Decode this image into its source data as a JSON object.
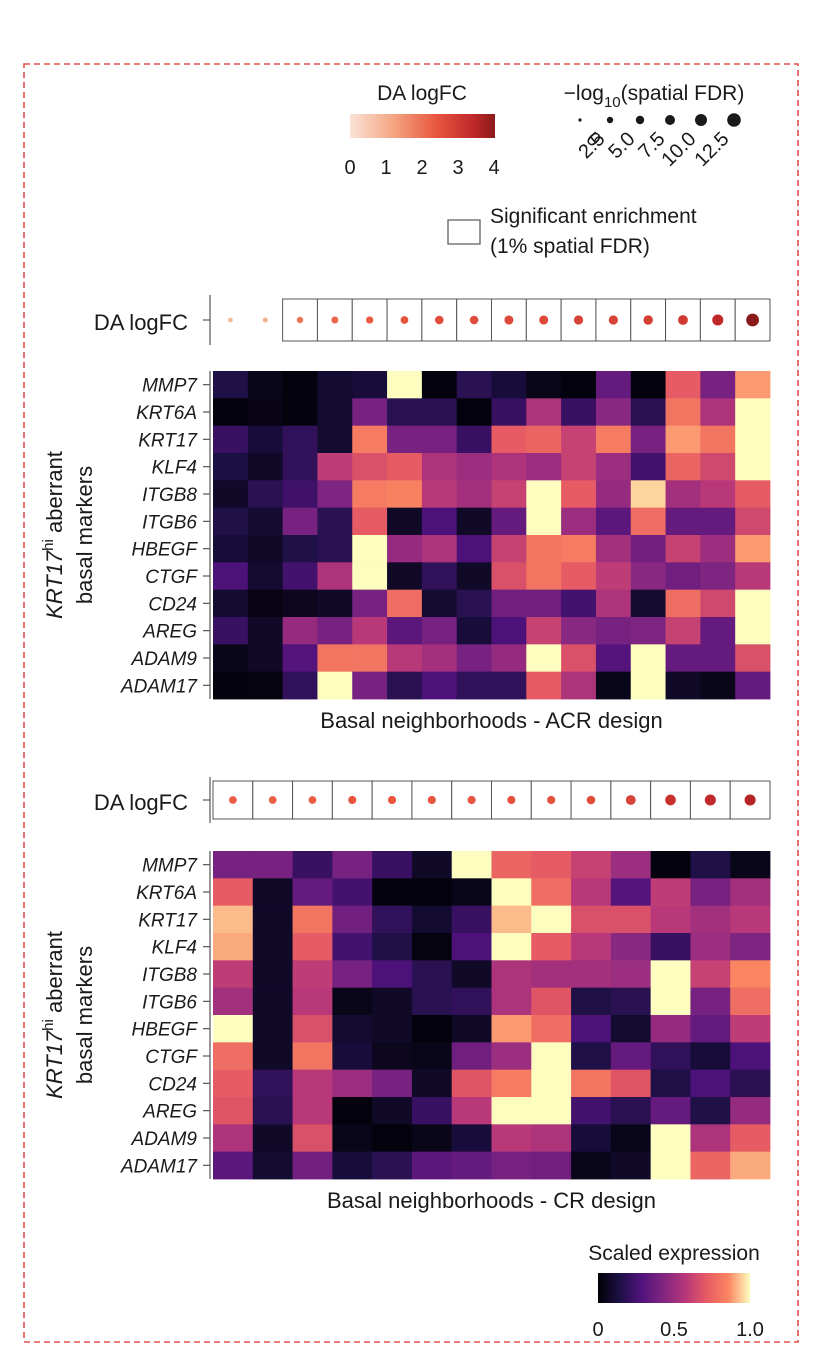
{
  "chart_data": [
    {
      "type": "heatmap",
      "name": "ACR design",
      "xlabel": "Basal neighborhoods - ACR design",
      "ylabel_main": "KRT17",
      "ylabel_sup": "hi",
      "ylabel_rest": " aberrant",
      "ylabel_line2": "basal markers",
      "da_row_label": "DA logFC",
      "genes": [
        "MMP7",
        "KRT6A",
        "KRT17",
        "KLF4",
        "ITGB8",
        "ITGB6",
        "HBEGF",
        "CTGF",
        "CD24",
        "AREG",
        "ADAM9",
        "ADAM17"
      ],
      "n_columns": 16,
      "da_logfc": [
        0.7,
        0.8,
        1.6,
        1.8,
        1.9,
        2.0,
        2.2,
        2.2,
        2.3,
        2.3,
        2.4,
        2.4,
        2.5,
        2.6,
        3.0,
        4.0
      ],
      "da_neg_log10_fdr": [
        0.5,
        0.8,
        2.5,
        3.0,
        3.5,
        4.0,
        5.0,
        5.0,
        5.5,
        5.5,
        5.8,
        5.8,
        6.0,
        6.5,
        8.0,
        10.0
      ],
      "da_significant": [
        false,
        false,
        true,
        true,
        true,
        true,
        true,
        true,
        true,
        true,
        true,
        true,
        true,
        true,
        true,
        true
      ],
      "values": [
        [
          0.15,
          0.05,
          0.02,
          0.1,
          0.12,
          1.0,
          0.02,
          0.18,
          0.12,
          0.05,
          0.02,
          0.35,
          0.02,
          0.72,
          0.4,
          0.88
        ],
        [
          0.02,
          0.04,
          0.02,
          0.1,
          0.4,
          0.18,
          0.18,
          0.02,
          0.22,
          0.55,
          0.22,
          0.45,
          0.18,
          0.8,
          0.55,
          1.0
        ],
        [
          0.22,
          0.12,
          0.2,
          0.1,
          0.82,
          0.4,
          0.4,
          0.22,
          0.72,
          0.75,
          0.62,
          0.82,
          0.4,
          0.88,
          0.8,
          1.0
        ],
        [
          0.14,
          0.08,
          0.2,
          0.6,
          0.68,
          0.72,
          0.55,
          0.5,
          0.55,
          0.5,
          0.62,
          0.5,
          0.25,
          0.75,
          0.65,
          1.0
        ],
        [
          0.08,
          0.18,
          0.24,
          0.42,
          0.82,
          0.84,
          0.58,
          0.52,
          0.62,
          1.0,
          0.72,
          0.48,
          0.95,
          0.52,
          0.58,
          0.72
        ],
        [
          0.15,
          0.1,
          0.4,
          0.18,
          0.72,
          0.08,
          0.28,
          0.08,
          0.35,
          1.0,
          0.5,
          0.32,
          0.78,
          0.35,
          0.35,
          0.65
        ],
        [
          0.12,
          0.08,
          0.15,
          0.18,
          1.0,
          0.48,
          0.55,
          0.28,
          0.62,
          0.8,
          0.82,
          0.52,
          0.38,
          0.62,
          0.5,
          0.88
        ],
        [
          0.28,
          0.1,
          0.25,
          0.55,
          1.0,
          0.08,
          0.2,
          0.08,
          0.68,
          0.8,
          0.72,
          0.6,
          0.45,
          0.38,
          0.42,
          0.58
        ],
        [
          0.1,
          0.04,
          0.06,
          0.08,
          0.4,
          0.78,
          0.1,
          0.18,
          0.38,
          0.38,
          0.25,
          0.55,
          0.1,
          0.78,
          0.65,
          1.0
        ],
        [
          0.22,
          0.08,
          0.48,
          0.4,
          0.58,
          0.32,
          0.4,
          0.12,
          0.28,
          0.62,
          0.45,
          0.4,
          0.42,
          0.62,
          0.35,
          1.0
        ],
        [
          0.05,
          0.08,
          0.3,
          0.8,
          0.8,
          0.58,
          0.52,
          0.4,
          0.48,
          1.0,
          0.68,
          0.3,
          1.0,
          0.35,
          0.35,
          0.68
        ],
        [
          0.02,
          0.03,
          0.2,
          1.0,
          0.4,
          0.18,
          0.28,
          0.2,
          0.2,
          0.72,
          0.55,
          0.05,
          1.0,
          0.08,
          0.05,
          0.35
        ]
      ]
    },
    {
      "type": "heatmap",
      "name": "CR design",
      "xlabel": "Basal neighborhoods - CR design",
      "ylabel_main": "KRT17",
      "ylabel_sup": "hi",
      "ylabel_rest": " aberrant",
      "ylabel_line2": "basal markers",
      "da_row_label": "DA logFC",
      "genes": [
        "MMP7",
        "KRT6A",
        "KRT17",
        "KLF4",
        "ITGB8",
        "ITGB6",
        "HBEGF",
        "CTGF",
        "CD24",
        "AREG",
        "ADAM9",
        "ADAM17"
      ],
      "n_columns": 14,
      "da_logfc": [
        1.9,
        1.9,
        1.9,
        2.0,
        2.0,
        2.0,
        2.0,
        2.1,
        2.1,
        2.2,
        2.4,
        2.8,
        3.0,
        3.2
      ],
      "da_neg_log10_fdr": [
        4.0,
        4.0,
        4.0,
        4.5,
        4.5,
        4.5,
        4.5,
        4.5,
        4.5,
        5.0,
        6.5,
        7.5,
        8.0,
        8.0
      ],
      "da_significant": [
        true,
        true,
        true,
        true,
        true,
        true,
        true,
        true,
        true,
        true,
        true,
        true,
        true,
        true
      ],
      "values": [
        [
          0.4,
          0.4,
          0.22,
          0.4,
          0.22,
          0.08,
          1.0,
          0.75,
          0.72,
          0.62,
          0.5,
          0.02,
          0.15,
          0.05
        ],
        [
          0.72,
          0.08,
          0.35,
          0.25,
          0.02,
          0.02,
          0.05,
          1.0,
          0.78,
          0.58,
          0.3,
          0.6,
          0.4,
          0.52
        ],
        [
          0.92,
          0.08,
          0.8,
          0.38,
          0.2,
          0.1,
          0.22,
          0.92,
          1.0,
          0.68,
          0.68,
          0.58,
          0.52,
          0.58
        ],
        [
          0.9,
          0.08,
          0.72,
          0.25,
          0.15,
          0.03,
          0.28,
          1.0,
          0.72,
          0.58,
          0.45,
          0.22,
          0.5,
          0.42
        ],
        [
          0.6,
          0.08,
          0.6,
          0.4,
          0.28,
          0.18,
          0.08,
          0.55,
          0.52,
          0.52,
          0.5,
          1.0,
          0.62,
          0.85
        ],
        [
          0.52,
          0.08,
          0.58,
          0.05,
          0.08,
          0.18,
          0.2,
          0.55,
          0.7,
          0.15,
          0.18,
          1.0,
          0.4,
          0.78
        ],
        [
          1.0,
          0.08,
          0.68,
          0.1,
          0.08,
          0.02,
          0.08,
          0.88,
          0.78,
          0.28,
          0.1,
          0.48,
          0.35,
          0.6
        ],
        [
          0.78,
          0.08,
          0.8,
          0.12,
          0.06,
          0.05,
          0.38,
          0.5,
          1.0,
          0.15,
          0.35,
          0.2,
          0.12,
          0.28
        ],
        [
          0.72,
          0.2,
          0.58,
          0.5,
          0.4,
          0.08,
          0.7,
          0.82,
          1.0,
          0.8,
          0.7,
          0.15,
          0.28,
          0.18
        ],
        [
          0.7,
          0.18,
          0.58,
          0.02,
          0.08,
          0.22,
          0.58,
          1.0,
          1.0,
          0.25,
          0.18,
          0.35,
          0.15,
          0.48
        ],
        [
          0.55,
          0.08,
          0.68,
          0.05,
          0.02,
          0.05,
          0.12,
          0.58,
          0.55,
          0.12,
          0.05,
          1.0,
          0.55,
          0.72
        ],
        [
          0.32,
          0.1,
          0.38,
          0.12,
          0.18,
          0.32,
          0.35,
          0.4,
          0.38,
          0.05,
          0.08,
          1.0,
          0.75,
          0.9
        ]
      ]
    }
  ],
  "legends": {
    "da_logfc": {
      "title": "DA logFC",
      "ticks": [
        "0",
        "1",
        "2",
        "3",
        "4"
      ],
      "range": [
        0,
        4
      ],
      "colors": [
        "#fbe3d6",
        "#f4a582",
        "#e8553f",
        "#c0282a",
        "#8b1a1a"
      ]
    },
    "fdr": {
      "title_prefix": "−log",
      "title_sub": "10",
      "title_suffix": "(spatial FDR)",
      "values": [
        "0",
        "2.5",
        "5.0",
        "7.5",
        "10.0",
        "12.5"
      ]
    },
    "significance": {
      "line1": "Significant enrichment",
      "line2": "(1% spatial FDR)"
    },
    "scaled_expression": {
      "title": "Scaled expression",
      "ticks": [
        "0",
        "0.5",
        "1.0"
      ],
      "colormap": "magma"
    }
  },
  "colors": {
    "frame": "#e0504a",
    "border": "#555555"
  }
}
